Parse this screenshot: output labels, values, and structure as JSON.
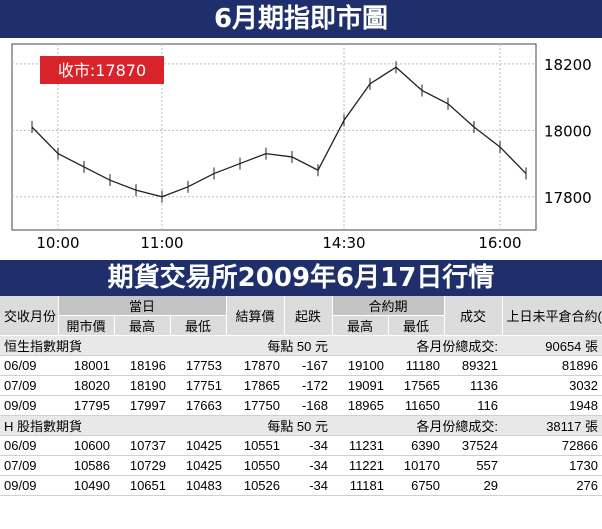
{
  "header": {
    "chart_title": "6月期指即市圖",
    "table_title": "期貨交易所2009年6月17日行情"
  },
  "close_tag": "收市:17870",
  "colors": {
    "navy": "#1f2f6b",
    "red": "#d8232a",
    "header_gray": "#dcdcdc"
  },
  "chart_data": {
    "type": "line",
    "title": "6月期指即市圖",
    "x_tick_labels": [
      "10:00",
      "11:00",
      "14:30",
      "16:00"
    ],
    "y_tick_labels": [
      "18200",
      "18000",
      "17800"
    ],
    "ylim": [
      17700,
      18260
    ],
    "grid": true,
    "annotation": "收市:17870",
    "x": [
      "09:45",
      "10:00",
      "10:15",
      "10:30",
      "10:45",
      "11:00",
      "11:15",
      "11:30",
      "11:45",
      "12:00",
      "12:15",
      "12:30",
      "14:30",
      "14:45",
      "15:00",
      "15:15",
      "15:30",
      "15:45",
      "16:00",
      "16:15"
    ],
    "values": [
      18010,
      17930,
      17890,
      17850,
      17820,
      17800,
      17830,
      17870,
      17900,
      17930,
      17920,
      17880,
      18030,
      18140,
      18190,
      18120,
      18080,
      18010,
      17950,
      17870
    ]
  },
  "table": {
    "head": {
      "month_label": "交收月份",
      "day_label": "當日",
      "open": "開市價",
      "high": "最高",
      "low": "最低",
      "settle": "結算價",
      "change": "起跌",
      "contract_label": "合約期",
      "c_high": "最高",
      "c_low": "最低",
      "volume": "成交",
      "oi": "上日未平倉合約(張)"
    },
    "sections": [
      {
        "name": "恒生指數期貨",
        "unit": "每點 50 元",
        "total_label": "各月份總成交:",
        "total": "90654 張",
        "rows": [
          [
            "06/09",
            "18001",
            "18196",
            "17753",
            "17870",
            "-167",
            "19100",
            "11180",
            "89321",
            "81896"
          ],
          [
            "07/09",
            "18020",
            "18190",
            "17751",
            "17865",
            "-172",
            "19091",
            "17565",
            "1136",
            "3032"
          ],
          [
            "09/09",
            "17795",
            "17997",
            "17663",
            "17750",
            "-168",
            "18965",
            "11650",
            "116",
            "1948"
          ]
        ]
      },
      {
        "name": "H 股指數期貨",
        "unit": "每點 50 元",
        "total_label": "各月份總成交:",
        "total": "38117 張",
        "rows": [
          [
            "06/09",
            "10600",
            "10737",
            "10425",
            "10551",
            "-34",
            "11231",
            "6390",
            "37524",
            "72866"
          ],
          [
            "07/09",
            "10586",
            "10729",
            "10425",
            "10550",
            "-34",
            "11221",
            "10170",
            "557",
            "1730"
          ],
          [
            "09/09",
            "10490",
            "10651",
            "10483",
            "10526",
            "-34",
            "11181",
            "6750",
            "29",
            "276"
          ]
        ]
      }
    ]
  }
}
